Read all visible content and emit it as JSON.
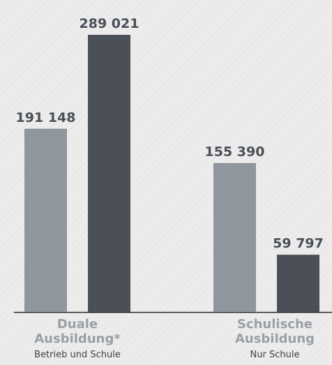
{
  "chart_data": {
    "type": "bar",
    "categories": [
      "Duale Ausbildung*",
      "Schulische Ausbildung"
    ],
    "category_notes": [
      "Betrieb und Schule",
      "Nur Schule"
    ],
    "series": [
      {
        "color": "#8f969d",
        "values": [
          191148,
          155390
        ],
        "value_labels": [
          "191 148",
          "155 390"
        ]
      },
      {
        "color": "#4b5058",
        "values": [
          289021,
          59797
        ],
        "value_labels": [
          "289 021",
          "59 797"
        ]
      }
    ]
  }
}
